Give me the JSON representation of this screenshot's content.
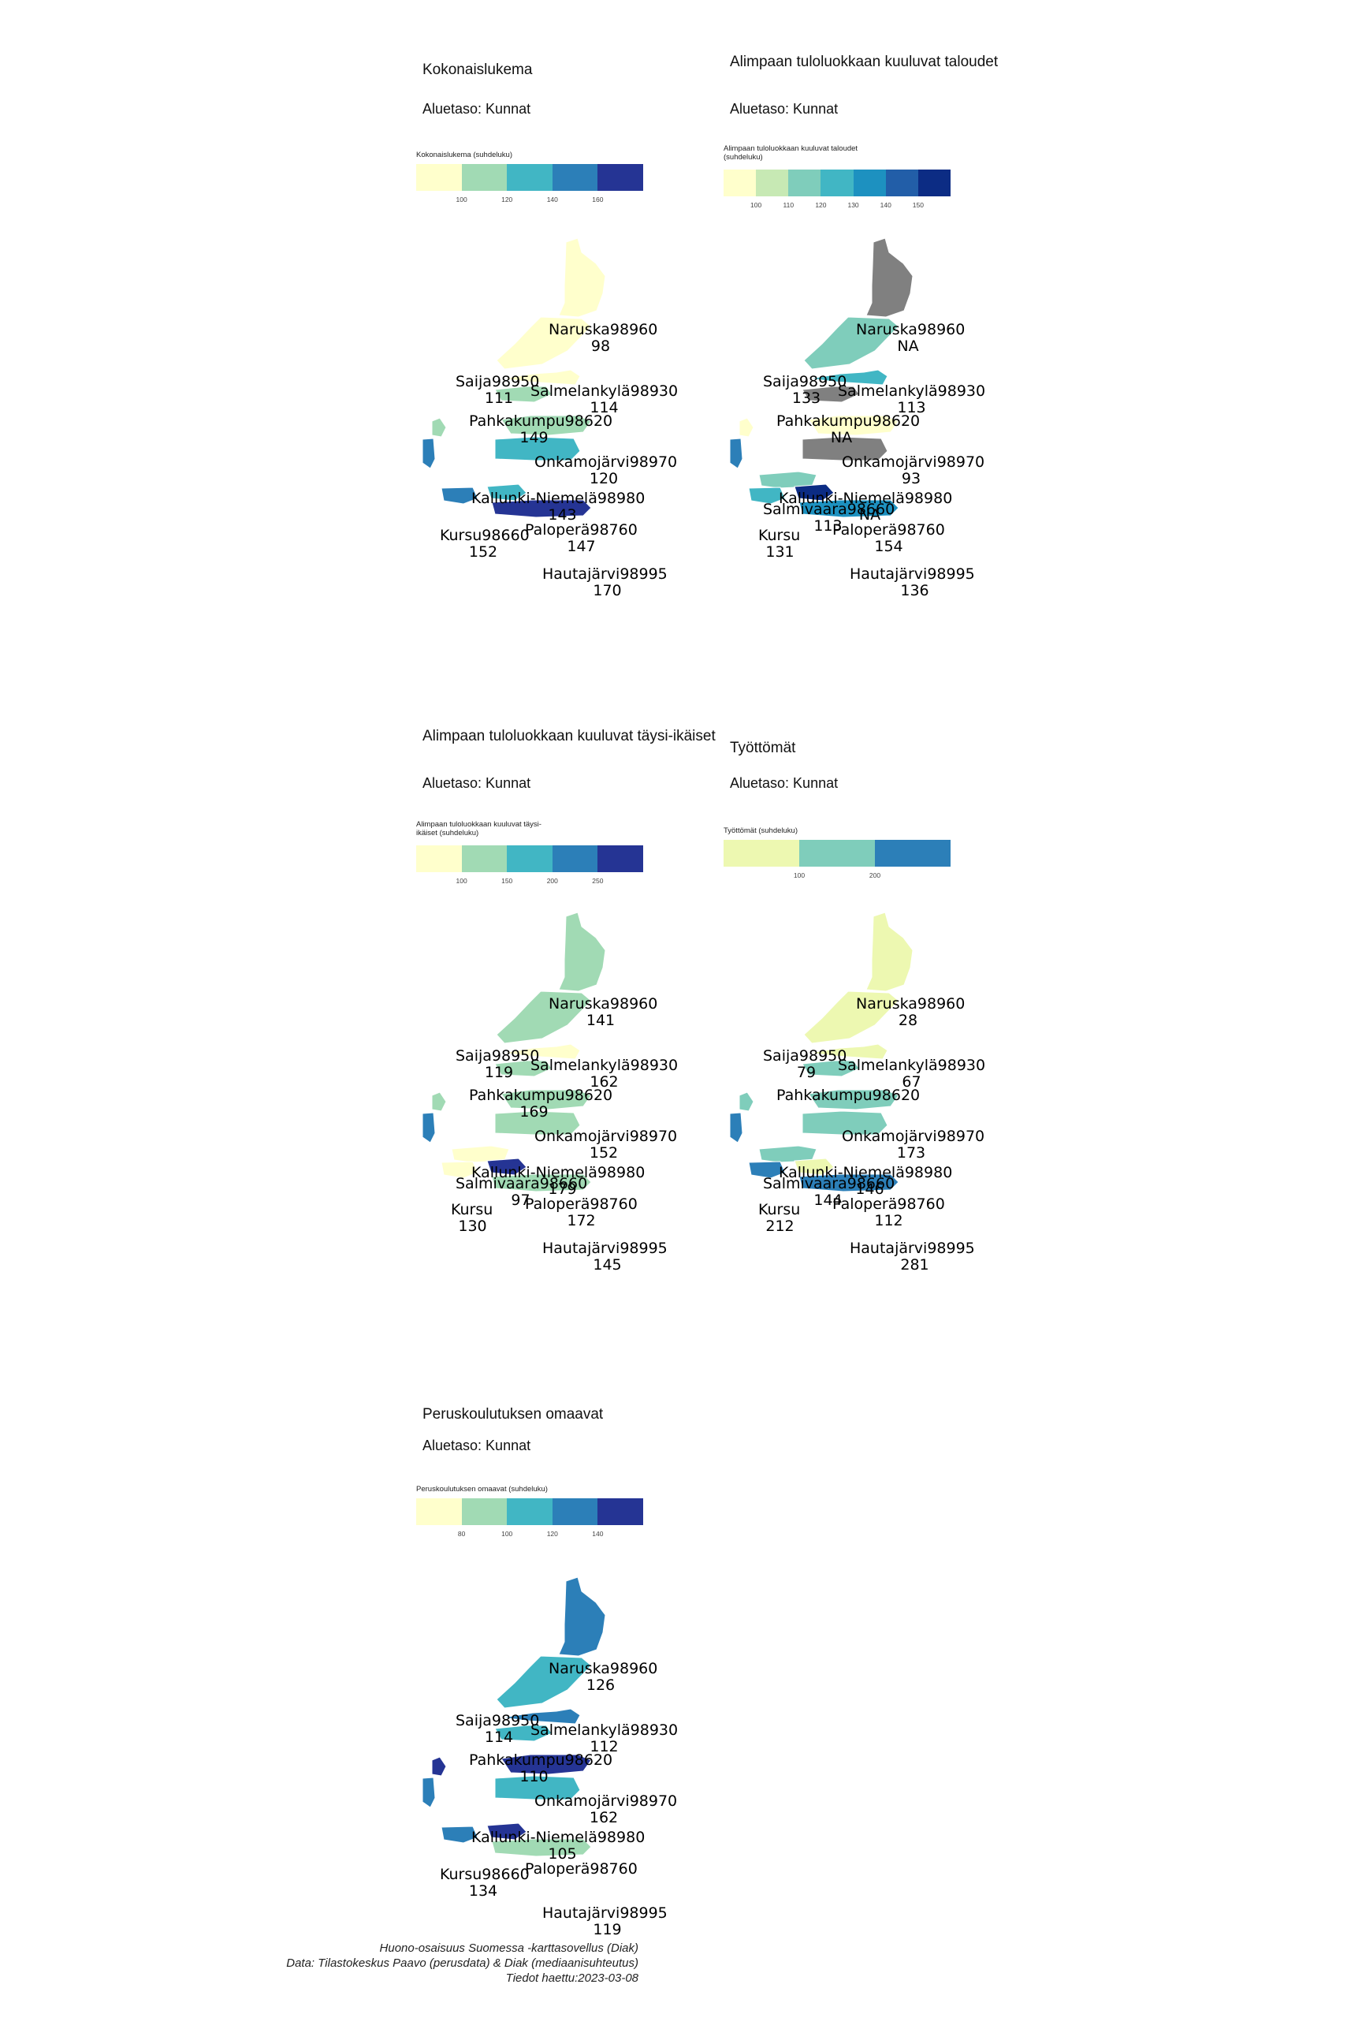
{
  "panels": [
    {
      "title": "Kokonaislukema",
      "subtitle": "Aluetaso: Kunnat",
      "legend_title": "Kokonaislukema (suhdeluku)",
      "legend_colors": [
        "#ffffcc",
        "#a1dab4",
        "#41b6c4",
        "#2c7fb8",
        "#253494"
      ],
      "legend_ticks": [
        "100",
        "120",
        "140",
        "160"
      ],
      "areas": [
        {
          "name": "Naruska98960",
          "value": "98",
          "color": "#ffffcc"
        },
        {
          "name": "Saija98950",
          "value": "111",
          "color": "#ffffcc"
        },
        {
          "name": "Salmelankylä98930",
          "value": "114",
          "color": "#ffffcc"
        },
        {
          "name": "Pahkakumpu98620",
          "value": "149",
          "color": "#a1dab4"
        },
        {
          "name": "Onkamojärvi98970",
          "value": "120",
          "color": "#a1dab4"
        },
        {
          "name": "Kallunki-Niemelä98980",
          "value": "143",
          "color": "#41b6c4"
        },
        {
          "name": "Kursu98660",
          "value": "152",
          "color": "#2c7fb8"
        },
        {
          "name": "Paloperä98760",
          "value": "147",
          "color": "#41b6c4"
        },
        {
          "name": "Hautajärvi98995",
          "value": "170",
          "color": "#253494"
        }
      ]
    },
    {
      "title": "Alimpaan tuloluokkaan kuuluvat taloudet",
      "subtitle": "Aluetaso: Kunnat",
      "legend_title": "Alimpaan tuloluokkaan kuuluvat taloudet (suhdeluku)",
      "legend_colors": [
        "#ffffcc",
        "#c7e9b4",
        "#7fcdbb",
        "#41b6c4",
        "#1d91c0",
        "#225ea8",
        "#0c2c84"
      ],
      "legend_ticks": [
        "100",
        "110",
        "120",
        "130",
        "140",
        "150"
      ],
      "areas": [
        {
          "name": "Naruska98960",
          "value": "NA",
          "color": "#808080"
        },
        {
          "name": "Saija98950",
          "value": "133",
          "color": "#41b6c4"
        },
        {
          "name": "Salmelankylä98930",
          "value": "113",
          "color": "#7fcdbb"
        },
        {
          "name": "Pahkakumpu98620",
          "value": "NA",
          "color": "#808080"
        },
        {
          "name": "Onkamojärvi98970",
          "value": "93",
          "color": "#ffffcc"
        },
        {
          "name": "Kallunki-Niemelä98980",
          "value": "NA",
          "color": "#808080"
        },
        {
          "name": "Salmivaara98660",
          "value": "113",
          "color": "#7fcdbb"
        },
        {
          "name": "Kursu",
          "value": "131",
          "color": "#41b6c4"
        },
        {
          "name": "Paloperä98760",
          "value": "154",
          "color": "#0c2c84"
        },
        {
          "name": "Hautajärvi98995",
          "value": "136",
          "color": "#1d91c0"
        }
      ]
    },
    {
      "title": "Alimpaan tuloluokkaan kuuluvat täysi-ikäiset",
      "subtitle": "Aluetaso: Kunnat",
      "legend_title": "Alimpaan tuloluokkaan kuuluvat täysi-ikäiset (suhdeluku)",
      "legend_colors": [
        "#ffffcc",
        "#a1dab4",
        "#41b6c4",
        "#2c7fb8",
        "#253494"
      ],
      "legend_ticks": [
        "100",
        "150",
        "200",
        "250"
      ],
      "areas": [
        {
          "name": "Naruska98960",
          "value": "141",
          "color": "#a1dab4"
        },
        {
          "name": "Saija98950",
          "value": "119",
          "color": "#ffffcc"
        },
        {
          "name": "Salmelankylä98930",
          "value": "162",
          "color": "#a1dab4"
        },
        {
          "name": "Pahkakumpu98620",
          "value": "169",
          "color": "#a1dab4"
        },
        {
          "name": "Onkamojärvi98970",
          "value": "152",
          "color": "#a1dab4"
        },
        {
          "name": "Kallunki-Niemelä98980",
          "value": "179",
          "color": "#a1dab4"
        },
        {
          "name": "Salmivaara98660",
          "value": "97",
          "color": "#ffffcc"
        },
        {
          "name": "Kursu",
          "value": "130",
          "color": "#ffffcc"
        },
        {
          "name": "Paloperä98760",
          "value": "172",
          "color": "#253494"
        },
        {
          "name": "Hautajärvi98995",
          "value": "145",
          "color": "#a1dab4"
        }
      ]
    },
    {
      "title": "Työttömät",
      "subtitle": "Aluetaso: Kunnat",
      "legend_title": "Työttömät (suhdeluku)",
      "legend_colors": [
        "#edf8b1",
        "#7fcdbb",
        "#2c7fb8"
      ],
      "legend_ticks": [
        "100",
        "200"
      ],
      "areas": [
        {
          "name": "Naruska98960",
          "value": "28",
          "color": "#edf8b1"
        },
        {
          "name": "Saija98950",
          "value": "79",
          "color": "#edf8b1"
        },
        {
          "name": "Salmelankylä98930",
          "value": "67",
          "color": "#edf8b1"
        },
        {
          "name": "Pahkakumpu98620",
          "value": "",
          "color": "#7fcdbb"
        },
        {
          "name": "Onkamojärvi98970",
          "value": "173",
          "color": "#7fcdbb"
        },
        {
          "name": "Kallunki-Niemelä98980",
          "value": "146",
          "color": "#7fcdbb"
        },
        {
          "name": "Salmivaara98660",
          "value": "144",
          "color": "#7fcdbb"
        },
        {
          "name": "Kursu",
          "value": "212",
          "color": "#2c7fb8"
        },
        {
          "name": "Paloperä98760",
          "value": "112",
          "color": "#edf8b1"
        },
        {
          "name": "Hautajärvi98995",
          "value": "281",
          "color": "#2c7fb8"
        }
      ]
    },
    {
      "title": "Peruskoulutuksen omaavat",
      "subtitle": "Aluetaso: Kunnat",
      "legend_title": "Peruskoulutuksen omaavat (suhdeluku)",
      "legend_colors": [
        "#ffffcc",
        "#a1dab4",
        "#41b6c4",
        "#2c7fb8",
        "#253494"
      ],
      "legend_ticks": [
        "80",
        "100",
        "120",
        "140"
      ],
      "areas": [
        {
          "name": "Naruska98960",
          "value": "126",
          "color": "#2c7fb8"
        },
        {
          "name": "Saija98950",
          "value": "114",
          "color": "#2c7fb8"
        },
        {
          "name": "Salmelankylä98930",
          "value": "112",
          "color": "#41b6c4"
        },
        {
          "name": "Pahkakumpu98620",
          "value": "110",
          "color": "#41b6c4"
        },
        {
          "name": "Onkamojärvi98970",
          "value": "162",
          "color": "#253494"
        },
        {
          "name": "Kallunki-Niemelä98980",
          "value": "105",
          "color": "#41b6c4"
        },
        {
          "name": "Kursu98660",
          "value": "134",
          "color": "#2c7fb8"
        },
        {
          "name": "Paloperä98760",
          "value": "",
          "color": "#253494"
        },
        {
          "name": "Hautajärvi98995",
          "value": "119",
          "color": "#a1dab4"
        }
      ]
    }
  ],
  "footer": {
    "line1": "Huono-osaisuus Suomessa -karttasovellus (Diak)",
    "line2": "Data: Tilastokeskus Paavo (perusdata) & Diak (mediaanisuhteutus)",
    "line3": "Tiedot haettu:2023-03-08"
  }
}
